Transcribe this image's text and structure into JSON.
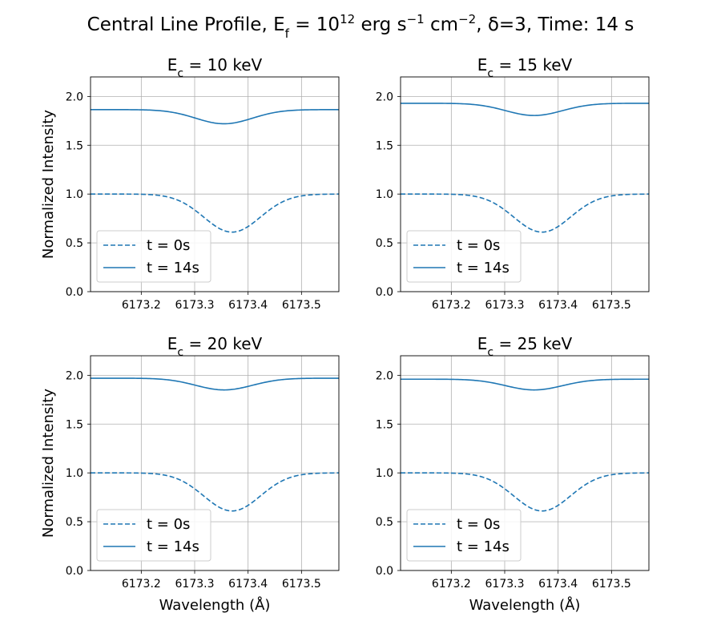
{
  "figure": {
    "title": {
      "lead": "Central Line Profile, E",
      "lead_sub": "f",
      "mid1": " = 10",
      "mid1_sup": "12",
      "mid2": " erg s",
      "mid2_sup": "−1",
      "mid3": " cm",
      "mid3_sup": "−2",
      "tail": ", δ=3, Time: 14 s"
    }
  },
  "colors": {
    "series": "#1f77b4",
    "grid": "#b0b0b0",
    "axis": "#000000"
  },
  "chart_data": [
    {
      "type": "line",
      "title": "E_c = 10 keV",
      "title_parts": {
        "pre": "E",
        "sub": "c",
        "post": " = 10 keV"
      },
      "xlabel": "",
      "ylabel": "Normalized Intensity",
      "xlim": [
        6173.105,
        6173.57
      ],
      "ylim": [
        0,
        2.2
      ],
      "xticks": [
        "6173.2",
        "6173.3",
        "6173.4",
        "6173.5"
      ],
      "yticks": [
        "0.0",
        "0.5",
        "1.0",
        "1.5",
        "2.0"
      ],
      "grid": true,
      "legend": "lower-left",
      "series": [
        {
          "name": "t = 0s",
          "style": "dashed",
          "continuum": 1.0,
          "depth": 0.39,
          "center": 6173.37,
          "width": 0.075
        },
        {
          "name": "t = 14s",
          "style": "solid",
          "continuum": 1.865,
          "depth": 0.145,
          "center": 6173.355,
          "width": 0.075
        }
      ]
    },
    {
      "type": "line",
      "title": "E_c = 15 keV",
      "title_parts": {
        "pre": "E",
        "sub": "c",
        "post": " = 15 keV"
      },
      "xlabel": "",
      "ylabel": "",
      "xlim": [
        6173.105,
        6173.57
      ],
      "ylim": [
        0,
        2.2
      ],
      "xticks": [
        "6173.2",
        "6173.3",
        "6173.4",
        "6173.5"
      ],
      "yticks": [
        "0.0",
        "0.5",
        "1.0",
        "1.5",
        "2.0"
      ],
      "grid": true,
      "legend": "lower-left",
      "series": [
        {
          "name": "t = 0s",
          "style": "dashed",
          "continuum": 1.0,
          "depth": 0.39,
          "center": 6173.37,
          "width": 0.075
        },
        {
          "name": "t = 14s",
          "style": "solid",
          "continuum": 1.93,
          "depth": 0.125,
          "center": 6173.355,
          "width": 0.075
        }
      ]
    },
    {
      "type": "line",
      "title": "E_c = 20 keV",
      "title_parts": {
        "pre": "E",
        "sub": "c",
        "post": " = 20 keV"
      },
      "xlabel": "Wavelength (Å)",
      "ylabel": "Normalized Intensity",
      "xlim": [
        6173.105,
        6173.57
      ],
      "ylim": [
        0,
        2.2
      ],
      "xticks": [
        "6173.2",
        "6173.3",
        "6173.4",
        "6173.5"
      ],
      "yticks": [
        "0.0",
        "0.5",
        "1.0",
        "1.5",
        "2.0"
      ],
      "grid": true,
      "legend": "lower-left",
      "series": [
        {
          "name": "t = 0s",
          "style": "dashed",
          "continuum": 1.0,
          "depth": 0.39,
          "center": 6173.37,
          "width": 0.075
        },
        {
          "name": "t = 14s",
          "style": "solid",
          "continuum": 1.97,
          "depth": 0.12,
          "center": 6173.355,
          "width": 0.075
        }
      ]
    },
    {
      "type": "line",
      "title": "E_c = 25 keV",
      "title_parts": {
        "pre": "E",
        "sub": "c",
        "post": " = 25 keV"
      },
      "xlabel": "Wavelength (Å)",
      "ylabel": "",
      "xlim": [
        6173.105,
        6173.57
      ],
      "ylim": [
        0,
        2.2
      ],
      "xticks": [
        "6173.2",
        "6173.3",
        "6173.4",
        "6173.5"
      ],
      "yticks": [
        "0.0",
        "0.5",
        "1.0",
        "1.5",
        "2.0"
      ],
      "grid": true,
      "legend": "lower-left",
      "series": [
        {
          "name": "t = 0s",
          "style": "dashed",
          "continuum": 1.0,
          "depth": 0.39,
          "center": 6173.37,
          "width": 0.075
        },
        {
          "name": "t = 14s",
          "style": "solid",
          "continuum": 1.96,
          "depth": 0.11,
          "center": 6173.355,
          "width": 0.075
        }
      ]
    }
  ]
}
